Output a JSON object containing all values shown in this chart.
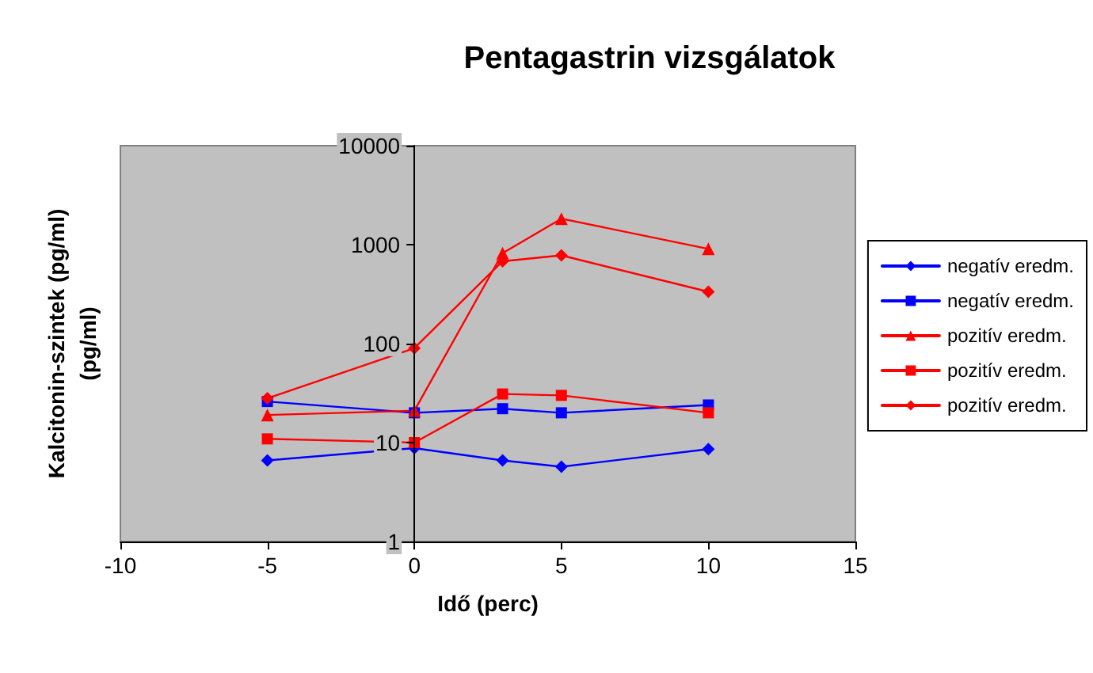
{
  "chart_data": {
    "type": "line",
    "title": "Pentagastrin vizsgálatok",
    "xlabel": "Idő (perc)",
    "ylabel": "Kalcitonin-szintek (pg/ml)\n(pg/ml)",
    "x": [
      -5,
      0,
      3,
      5,
      10
    ],
    "xlim": [
      -10,
      15
    ],
    "xticks": [
      -10,
      -5,
      0,
      5,
      10,
      15
    ],
    "ylim": [
      1,
      10000
    ],
    "yticks": [
      1,
      10,
      100,
      1000,
      10000
    ],
    "log": true,
    "grid": false,
    "legend": "right",
    "series": [
      {
        "name": "negatív eredm.",
        "color": "#0000ff",
        "marker": "diamond",
        "values": [
          6.6,
          8.8,
          6.6,
          5.7,
          8.6
        ]
      },
      {
        "name": "negatív eredm.",
        "color": "#0000ff",
        "marker": "square",
        "values": [
          26,
          20,
          22,
          20,
          24
        ]
      },
      {
        "name": "pozitív eredm.",
        "color": "#ff0000",
        "marker": "triangle",
        "values": [
          19,
          21,
          820,
          1830,
          906
        ]
      },
      {
        "name": "pozitív eredm.",
        "color": "#ff0000",
        "marker": "square",
        "values": [
          10.9,
          10,
          31,
          30,
          20
        ]
      },
      {
        "name": "pozitív eredm.",
        "color": "#ff0000",
        "marker": "diamond",
        "values": [
          28,
          90,
          680,
          780,
          334
        ]
      }
    ]
  }
}
